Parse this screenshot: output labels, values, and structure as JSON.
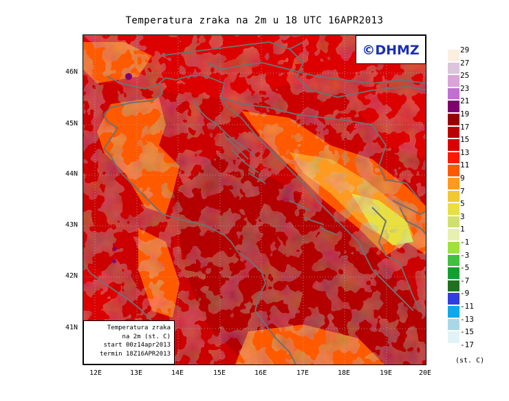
{
  "title": "Temperatura zraka na 2m u 18 UTC 16APR2013",
  "logo": "©DHMZ",
  "info_box": {
    "line1": "Temperatura zraka",
    "line2": "na 2m (st. C)",
    "line3": "start 00z14apr2013",
    "line4": "termin 18Z16APR2013"
  },
  "map": {
    "lon_range": [
      11.8,
      20.0
    ],
    "lat_range": [
      40.25,
      46.8
    ],
    "x_ticks": [
      "12E",
      "13E",
      "14E",
      "15E",
      "16E",
      "17E",
      "18E",
      "19E",
      "20E"
    ],
    "y_ticks": [
      "46N",
      "45N",
      "44N",
      "43N",
      "42N",
      "41N"
    ]
  },
  "legend": {
    "labels": [
      "29",
      "27",
      "25",
      "23",
      "21",
      "19",
      "17",
      "15",
      "13",
      "11",
      "9",
      "7",
      "5",
      "3",
      "1",
      "-1",
      "-3",
      "-5",
      "-7",
      "-9",
      "-11",
      "-13",
      "-15",
      "-17"
    ],
    "colors": [
      "#fdeee0",
      "#dcc4dc",
      "#d9a4d8",
      "#c070d0",
      "#800070",
      "#9a0000",
      "#bb0000",
      "#dd0000",
      "#ff1a00",
      "#ff5a00",
      "#ff9a20",
      "#f0c830",
      "#e8e040",
      "#d0e070",
      "#e8f0b0",
      "#a0e040",
      "#40c040",
      "#10a030",
      "#207020",
      "#3040e0",
      "#10a8e8",
      "#a8d8e8",
      "#e0f4f8"
    ],
    "unit": "(st. C)"
  }
}
